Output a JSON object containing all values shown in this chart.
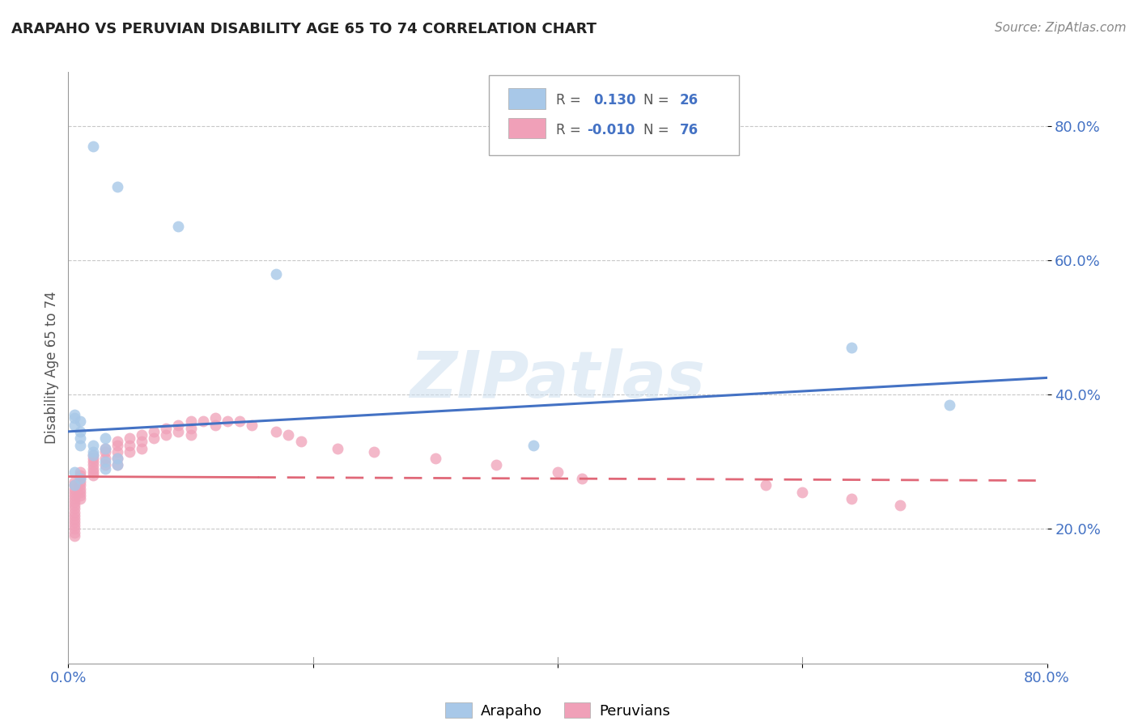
{
  "title": "ARAPAHO VS PERUVIAN DISABILITY AGE 65 TO 74 CORRELATION CHART",
  "source": "Source: ZipAtlas.com",
  "ylabel": "Disability Age 65 to 74",
  "xlim": [
    0.0,
    0.8
  ],
  "ylim": [
    0.0,
    0.88
  ],
  "xticks": [
    0.0,
    0.2,
    0.4,
    0.6,
    0.8
  ],
  "xtick_labels": [
    "0.0%",
    "",
    "",
    "",
    "80.0%"
  ],
  "yticks": [
    0.2,
    0.4,
    0.6,
    0.8
  ],
  "ytick_labels": [
    "20.0%",
    "40.0%",
    "60.0%",
    "80.0%"
  ],
  "grid_color": "#c8c8c8",
  "background_color": "#ffffff",
  "watermark": "ZIPatlas",
  "legend_R_arapaho": "0.130",
  "legend_N_arapaho": "26",
  "legend_R_peruvian": "-0.010",
  "legend_N_peruvian": "76",
  "arapaho_color": "#a8c8e8",
  "peruvian_color": "#f0a0b8",
  "trendline_arapaho_color": "#4472c4",
  "trendline_peruvian_color": "#e06878",
  "arapaho_x": [
    0.02,
    0.04,
    0.09,
    0.17,
    0.005,
    0.005,
    0.01,
    0.01,
    0.02,
    0.02,
    0.03,
    0.03,
    0.04,
    0.04,
    0.005,
    0.01,
    0.005,
    0.01,
    0.01,
    0.02,
    0.03,
    0.03,
    0.64,
    0.72,
    0.38,
    0.005
  ],
  "arapaho_y": [
    0.77,
    0.71,
    0.65,
    0.58,
    0.365,
    0.355,
    0.345,
    0.335,
    0.325,
    0.315,
    0.335,
    0.32,
    0.305,
    0.295,
    0.285,
    0.275,
    0.265,
    0.36,
    0.325,
    0.31,
    0.3,
    0.29,
    0.47,
    0.385,
    0.325,
    0.37
  ],
  "peruvian_x": [
    0.005,
    0.005,
    0.005,
    0.005,
    0.005,
    0.005,
    0.005,
    0.005,
    0.005,
    0.005,
    0.005,
    0.005,
    0.005,
    0.005,
    0.005,
    0.005,
    0.005,
    0.01,
    0.01,
    0.01,
    0.01,
    0.01,
    0.01,
    0.01,
    0.01,
    0.01,
    0.02,
    0.02,
    0.02,
    0.02,
    0.02,
    0.02,
    0.02,
    0.03,
    0.03,
    0.03,
    0.03,
    0.04,
    0.04,
    0.04,
    0.04,
    0.04,
    0.05,
    0.05,
    0.05,
    0.06,
    0.06,
    0.06,
    0.07,
    0.07,
    0.08,
    0.08,
    0.09,
    0.09,
    0.1,
    0.1,
    0.1,
    0.11,
    0.12,
    0.12,
    0.13,
    0.14,
    0.15,
    0.17,
    0.18,
    0.19,
    0.22,
    0.25,
    0.3,
    0.35,
    0.4,
    0.42,
    0.57,
    0.6,
    0.64,
    0.68
  ],
  "peruvian_y": [
    0.27,
    0.265,
    0.26,
    0.255,
    0.25,
    0.245,
    0.24,
    0.235,
    0.23,
    0.225,
    0.22,
    0.215,
    0.21,
    0.205,
    0.2,
    0.195,
    0.19,
    0.285,
    0.28,
    0.275,
    0.27,
    0.265,
    0.26,
    0.255,
    0.25,
    0.245,
    0.31,
    0.305,
    0.3,
    0.295,
    0.29,
    0.285,
    0.28,
    0.32,
    0.315,
    0.305,
    0.295,
    0.33,
    0.325,
    0.315,
    0.305,
    0.295,
    0.335,
    0.325,
    0.315,
    0.34,
    0.33,
    0.32,
    0.345,
    0.335,
    0.35,
    0.34,
    0.355,
    0.345,
    0.36,
    0.35,
    0.34,
    0.36,
    0.365,
    0.355,
    0.36,
    0.36,
    0.355,
    0.345,
    0.34,
    0.33,
    0.32,
    0.315,
    0.305,
    0.295,
    0.285,
    0.275,
    0.265,
    0.255,
    0.245,
    0.235
  ],
  "trendline_arapaho_x0": 0.0,
  "trendline_arapaho_x1": 0.8,
  "trendline_arapaho_y0": 0.345,
  "trendline_arapaho_y1": 0.425,
  "trendline_peruvian_x0": 0.0,
  "trendline_peruvian_x1": 0.8,
  "trendline_peruvian_y0": 0.278,
  "trendline_peruvian_y1": 0.272,
  "trendline_peruvian_solid_end": 0.155
}
